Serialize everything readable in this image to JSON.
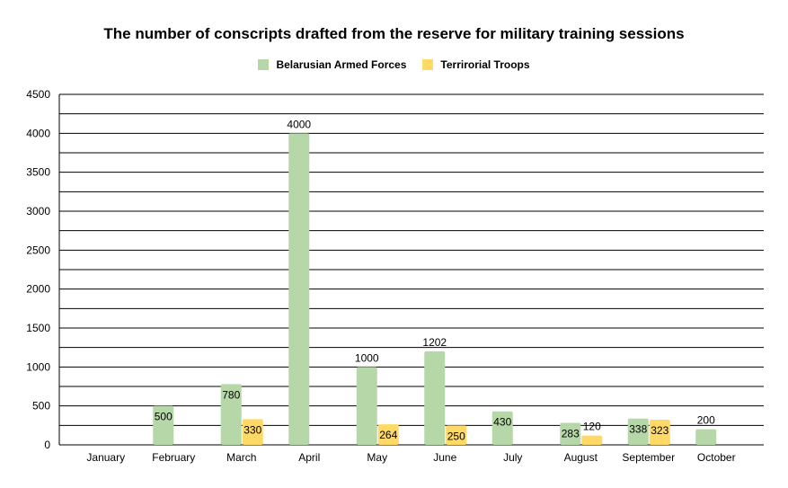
{
  "chart_data": {
    "type": "bar",
    "title": "The number of conscripts drafted from the reserve for military training sessions",
    "categories": [
      "January",
      "February",
      "March",
      "April",
      "May",
      "June",
      "July",
      "August",
      "September",
      "October"
    ],
    "series": [
      {
        "name": "Belarusian Armed Forces",
        "color": "#b6d7a8",
        "values": [
          null,
          500,
          780,
          4000,
          1000,
          1202,
          430,
          283,
          338,
          200
        ]
      },
      {
        "name": "Terrirorial Troops",
        "color": "#ffd966",
        "values": [
          null,
          null,
          330,
          null,
          264,
          250,
          null,
          120,
          323,
          null
        ]
      }
    ],
    "ylim": [
      0,
      4500
    ],
    "yticks": [
      0,
      500,
      1000,
      1500,
      2000,
      2500,
      3000,
      3500,
      4000,
      4500
    ],
    "grid": true,
    "legend": "top",
    "xlabel": "",
    "ylabel": ""
  }
}
